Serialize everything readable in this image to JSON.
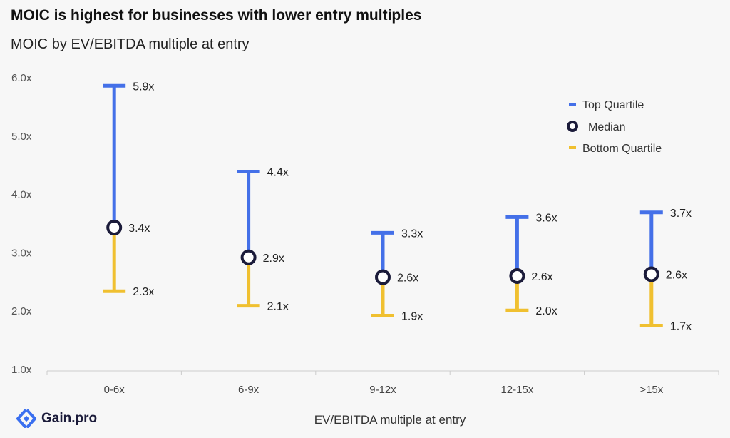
{
  "title": "MOIC is highest for businesses with lower entry multiples",
  "subtitle": "MOIC by EV/EBITDA multiple at entry",
  "xlabel": "EV/EBITDA multiple at entry",
  "brand": "Gain.pro",
  "colors": {
    "top": "#4470e8",
    "bottom": "#f0c030",
    "median_ring": "#1b1b3a",
    "median_fill": "#ffffff",
    "axis": "#cccccc",
    "brand": "#3a6ff0"
  },
  "legend": {
    "position": "top-right",
    "items": [
      {
        "key": "top",
        "label": "Top Quartile"
      },
      {
        "key": "median",
        "label": "Median"
      },
      {
        "key": "bottom",
        "label": "Bottom Quartile"
      }
    ]
  },
  "chart_data": {
    "type": "errorbar",
    "categories": [
      "0-6x",
      "6-9x",
      "9-12x",
      "12-15x",
      ">15x"
    ],
    "top_quartile": [
      5.85,
      4.38,
      3.33,
      3.6,
      3.68
    ],
    "median": [
      3.42,
      2.91,
      2.57,
      2.59,
      2.62
    ],
    "bottom_quartile": [
      2.33,
      2.08,
      1.91,
      2.0,
      1.74
    ],
    "top_labels": [
      "5.9x",
      "4.4x",
      "3.3x",
      "3.6x",
      "3.7x"
    ],
    "median_labels": [
      "3.4x",
      "2.9x",
      "2.6x",
      "2.6x",
      "2.6x"
    ],
    "bottom_labels": [
      "2.3x",
      "2.1x",
      "1.9x",
      "2.0x",
      "1.7x"
    ],
    "ylim": [
      1.0,
      6.0
    ],
    "yticks": [
      "1.0x",
      "2.0x",
      "3.0x",
      "4.0x",
      "5.0x",
      "6.0x"
    ],
    "grid": false
  }
}
